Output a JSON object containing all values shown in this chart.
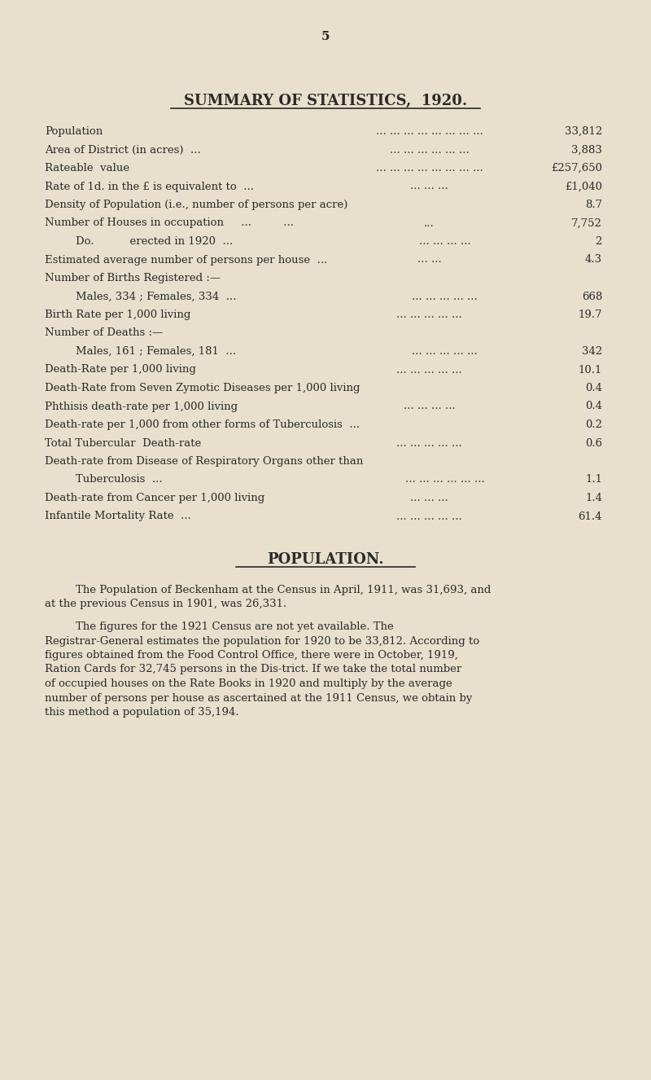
{
  "bg_color": "#e8e0cc",
  "text_color": "#2a2a2a",
  "page_number": "5",
  "title": "SUMMARY OF STATISTICS,  1920.",
  "stats": [
    {
      "label": "Population",
      "dots": "... ... ... ... ... ... ... ...",
      "value": "33,812",
      "indent": 0
    },
    {
      "label": "Area of District (in acres)  ...",
      "dots": "... ... ... ... ... ...",
      "value": "3,883",
      "indent": 0
    },
    {
      "label": "Rateable  value",
      "dots": "... ... ... ... ... ... ... ...",
      "value": "£257,650",
      "indent": 0
    },
    {
      "label": "Rate of 1d. in the £ is equivalent to  ...",
      "dots": "... ... ...",
      "value": "£1,040",
      "indent": 0
    },
    {
      "label": "Density of Population (i.e., number of persons per acre)",
      "dots": "",
      "value": "8.7",
      "indent": 0
    },
    {
      "label": "Number of Houses in occupation     ...     ...",
      "dots": "...",
      "value": "7,752",
      "indent": 0
    },
    {
      "label": "Do.    erected in 1920  ...",
      "dots": "... ... ... ...",
      "value": "2",
      "indent": 1
    },
    {
      "label": "Estimated average number of persons per house  ...",
      "dots": "... ...",
      "value": "4.3",
      "indent": 0
    },
    {
      "label": "Number of Births Registered :—",
      "dots": "",
      "value": "",
      "indent": 0
    },
    {
      "label": "Males, 334 ; Females, 334  ...",
      "dots": "... ... ... ... ...",
      "value": "668",
      "indent": 1
    },
    {
      "label": "Birth Rate per 1,000 living",
      "dots": "... ... ... ... ...",
      "value": "19.7",
      "indent": 0
    },
    {
      "label": "Number of Deaths :—",
      "dots": "",
      "value": "",
      "indent": 0
    },
    {
      "label": "Males, 161 ; Females, 181  ...",
      "dots": "... ... ... ... ...",
      "value": "342",
      "indent": 1
    },
    {
      "label": "Death-Rate per 1,000 living",
      "dots": "... ... ... ... ...",
      "value": "10.1",
      "indent": 0
    },
    {
      "label": "Death-Rate from Seven Zymotic Diseases per 1,000 living",
      "dots": "",
      "value": "0.4",
      "indent": 0
    },
    {
      "label": "Phthisis death-rate per 1,000 living",
      "dots": "... ... ... ...",
      "value": "0.4",
      "indent": 0
    },
    {
      "label": "Death-rate per 1,000 from other forms of Tuberculosis  ...",
      "dots": "",
      "value": "0.2",
      "indent": 0
    },
    {
      "label": "Total Tubercular  Death-rate",
      "dots": "... ... ... ... ...",
      "value": "0.6",
      "indent": 0
    },
    {
      "label": "Death-rate from Disease of Respiratory Organs other than",
      "dots": "",
      "value": "",
      "indent": 0
    },
    {
      "label": "Tuberculosis  ...",
      "dots": "... ... ... ... ... ...",
      "value": "1.1",
      "indent": 1
    },
    {
      "label": "Death-rate from Cancer per 1,000 living",
      "dots": "... ... ...",
      "value": "1.4",
      "indent": 0
    },
    {
      "label": "Infantile Mortality Rate  ...",
      "dots": "... ... ... ... ...",
      "value": "61.4",
      "indent": 0
    }
  ],
  "pop_section_title": "POPULATION.",
  "pop_para1": "The Population of Beckenham at the Census in April, 1911, was 31,693, and at the previous Census in 1901, was 26,331.",
  "pop_para2": "The figures for the 1921 Census are not yet available.  The Registrar-General estimates the population for 1920 to be 33,812. According to figures obtained from the Food Control Office, there were in October, 1919, Ration Cards for 32,745 persons in the Dis-trict.  If we take the total number of occupied houses on the Rate Books in 1920 and multiply by the average number of persons per house as ascertained at the 1911 Census, we obtain by this method a population of 35,194."
}
